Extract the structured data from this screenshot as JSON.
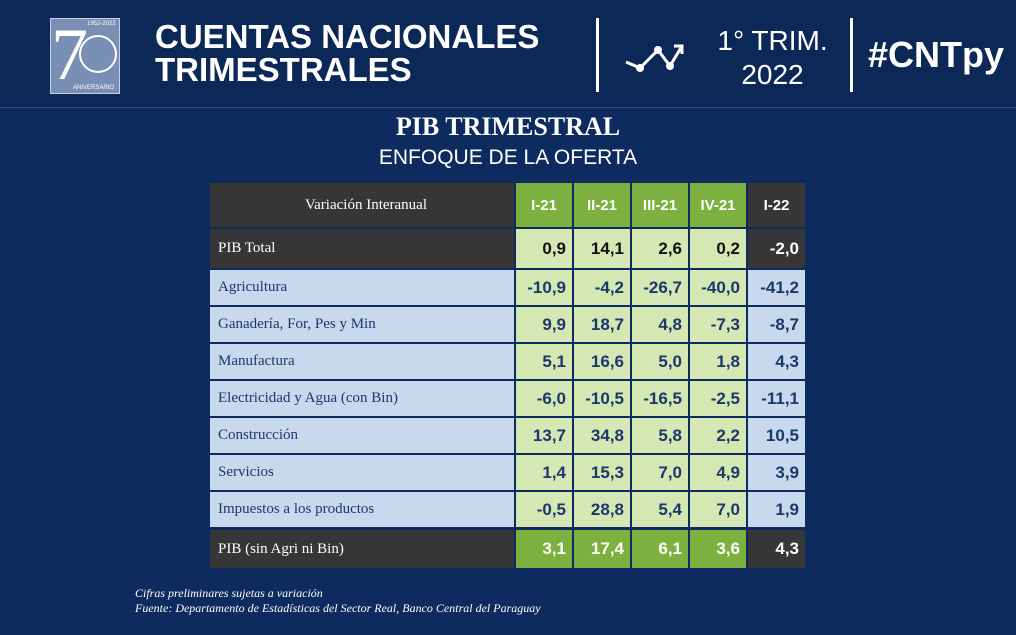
{
  "header": {
    "logo_years": "1952-2022",
    "logo_number": "7",
    "logo_text": "ANIVERSARIO",
    "title_line1": "CUENTAS NACIONALES",
    "title_line2": "TRIMESTRALES",
    "period_line1": "1° TRIM.",
    "period_line2": "2022",
    "hashtag": "#CNTpy"
  },
  "title": "PIB TRIMESTRAL",
  "subtitle": "ENFOQUE DE LA OFERTA",
  "table": {
    "columns": [
      "Variación Interanual",
      "I-21",
      "II-21",
      "III-21",
      "IV-21",
      "I-22"
    ],
    "rows": [
      [
        "PIB Total",
        "0,9",
        "14,1",
        "2,6",
        "0,2",
        "-2,0"
      ],
      [
        "Agricultura",
        "-10,9",
        "-4,2",
        "-26,7",
        "-40,0",
        "-41,2"
      ],
      [
        "Ganadería, For, Pes y Min",
        "9,9",
        "18,7",
        "4,8",
        "-7,3",
        "-8,7"
      ],
      [
        "Manufactura",
        "5,1",
        "16,6",
        "5,0",
        "1,8",
        "4,3"
      ],
      [
        "Electricidad y Agua (con Bin)",
        "-6,0",
        "-10,5",
        "-16,5",
        "-2,5",
        "-11,1"
      ],
      [
        "Construcción",
        "13,7",
        "34,8",
        "5,8",
        "2,2",
        "10,5"
      ],
      [
        "Servicios",
        "1,4",
        "15,3",
        "7,0",
        "4,9",
        "3,9"
      ],
      [
        "Impuestos a los productos",
        "-0,5",
        "28,8",
        "5,4",
        "7,0",
        "1,9"
      ],
      [
        "PIB (sin Agri ni Bin)",
        "3,1",
        "17,4",
        "6,1",
        "3,6",
        "4,3"
      ]
    ]
  },
  "footnotes": [
    "Cifras preliminares sujetas a variación",
    "Fuente: Departamento de Estadísticas del Sector Real, Banco Central del Paraguay"
  ]
}
